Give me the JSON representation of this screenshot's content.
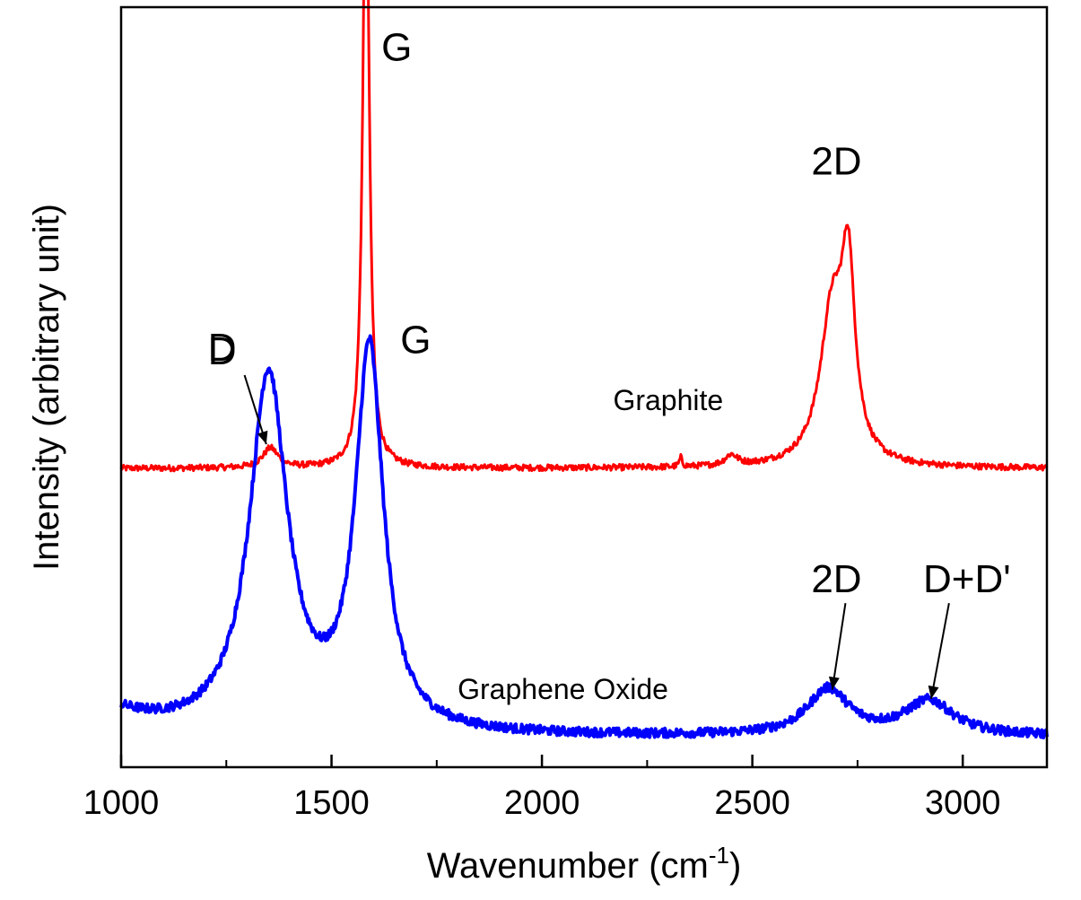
{
  "chart_data": {
    "type": "line",
    "xlabel": "Wavenumber (cm",
    "xlabel_sup": "-1",
    "xlabel_close": ")",
    "ylabel": "Intensity (arbitrary unit)",
    "xlim": [
      1000,
      3200
    ],
    "ylim": [
      0,
      1
    ],
    "x_ticks": [
      1000,
      1500,
      2000,
      2500,
      3000
    ],
    "x_minor_ticks": [
      1250,
      1750,
      2250,
      2750
    ],
    "y_ticks_labeled": false,
    "grid": false,
    "legend": "none",
    "series": [
      {
        "name": "Graphite",
        "color": "#ff0000",
        "baseline": 0.393,
        "peaks": [
          {
            "center": 1355,
            "height": 0.026,
            "width": 22
          },
          {
            "center": 1582,
            "height": 0.86,
            "width": 9
          },
          {
            "center": 2330,
            "height": 0.012,
            "width": 4
          },
          {
            "center": 2450,
            "height": 0.014,
            "width": 18
          },
          {
            "center": 2690,
            "height": 0.2,
            "width": 35
          },
          {
            "center": 2728,
            "height": 0.228,
            "width": 19
          }
        ]
      },
      {
        "name": "Graphene Oxide",
        "color": "#0000ff",
        "baseline": 0.04,
        "slope_start": 0.03,
        "peaks": [
          {
            "center": 1350,
            "height": 0.47,
            "width": 55
          },
          {
            "center": 1590,
            "height": 0.5,
            "width": 40
          },
          {
            "center": 2680,
            "height": 0.06,
            "width": 60
          },
          {
            "center": 2920,
            "height": 0.045,
            "width": 70
          }
        ]
      }
    ],
    "annotations": [
      {
        "text": "G",
        "x": 1655,
        "y": 0.93,
        "series": "Graphite"
      },
      {
        "text": "2D",
        "x": 2700,
        "y": 0.78,
        "series": "Graphite"
      },
      {
        "text": "D",
        "x": 1240,
        "y": 0.53,
        "series": "Graphite",
        "arrow_to": [
          1345,
          0.425
        ]
      },
      {
        "text": "Graphite",
        "x": 2300,
        "y": 0.47,
        "series": "Graphite"
      },
      {
        "text": "D",
        "x": 1240,
        "y": 0.535,
        "series": "Graphene Oxide"
      },
      {
        "text": "G",
        "x": 1700,
        "y": 0.545,
        "series": "Graphene Oxide"
      },
      {
        "text": "2D",
        "x": 2700,
        "y": 0.23,
        "series": "Graphene Oxide",
        "arrow_to": [
          2690,
          0.102
        ]
      },
      {
        "text": "D+D'",
        "x": 3010,
        "y": 0.23,
        "series": "Graphene Oxide",
        "arrow_to": [
          2925,
          0.09
        ]
      },
      {
        "text": "Graphene Oxide",
        "x": 2050,
        "y": 0.09,
        "series": "Graphene Oxide"
      }
    ]
  }
}
